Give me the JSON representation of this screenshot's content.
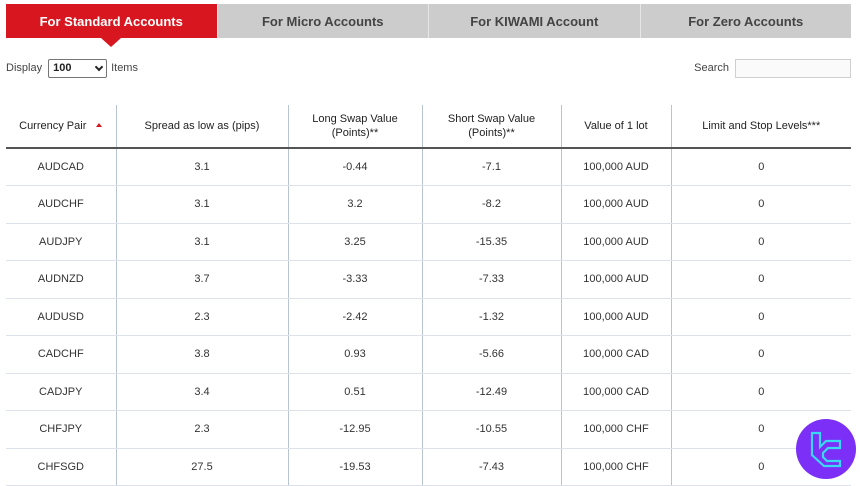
{
  "tabs": [
    {
      "label": "For Standard Accounts",
      "active": true
    },
    {
      "label": "For Micro Accounts",
      "active": false
    },
    {
      "label": "For KIWAMI Account",
      "active": false
    },
    {
      "label": "For Zero Accounts",
      "active": false
    }
  ],
  "controls": {
    "display_label": "Display",
    "display_value": "100",
    "items_label": "Items",
    "search_label": "Search",
    "search_value": ""
  },
  "table": {
    "headers": [
      "Currency Pair",
      "Spread as low as (pips)",
      "Long Swap Value\n(Points)**",
      "Short Swap Value\n(Points)**",
      "Value of 1 lot",
      "Limit and Stop Levels***"
    ],
    "header_lines": {
      "long_swap": [
        "Long Swap Value",
        "(Points)**"
      ],
      "short_swap": [
        "Short Swap Value",
        "(Points)**"
      ]
    },
    "sorted_column": "Currency Pair",
    "sort_direction": "ascending",
    "rows": [
      [
        "AUDCAD",
        "3.1",
        "-0.44",
        "-7.1",
        "100,000 AUD",
        "0"
      ],
      [
        "AUDCHF",
        "3.1",
        "3.2",
        "-8.2",
        "100,000 AUD",
        "0"
      ],
      [
        "AUDJPY",
        "3.1",
        "3.25",
        "-15.35",
        "100,000 AUD",
        "0"
      ],
      [
        "AUDNZD",
        "3.7",
        "-3.33",
        "-7.33",
        "100,000 AUD",
        "0"
      ],
      [
        "AUDUSD",
        "2.3",
        "-2.42",
        "-1.32",
        "100,000 AUD",
        "0"
      ],
      [
        "CADCHF",
        "3.8",
        "0.93",
        "-5.66",
        "100,000 CAD",
        "0"
      ],
      [
        "CADJPY",
        "3.4",
        "0.51",
        "-12.49",
        "100,000 CAD",
        "0"
      ],
      [
        "CHFJPY",
        "2.3",
        "-12.95",
        "-10.55",
        "100,000 CHF",
        "0"
      ],
      [
        "CHFSGD",
        "27.5",
        "-19.53",
        "-7.43",
        "100,000 CHF",
        "0"
      ]
    ]
  },
  "colors": {
    "accent": "#d7161f",
    "tab_inactive": "#cccccc",
    "logo_bg": "#7b2ff7",
    "logo_fg": "#3ad8f5"
  },
  "icons": {
    "sort": "sort-asc-icon",
    "select": "chevron-down-icon",
    "logo": "tc-logo-icon"
  }
}
